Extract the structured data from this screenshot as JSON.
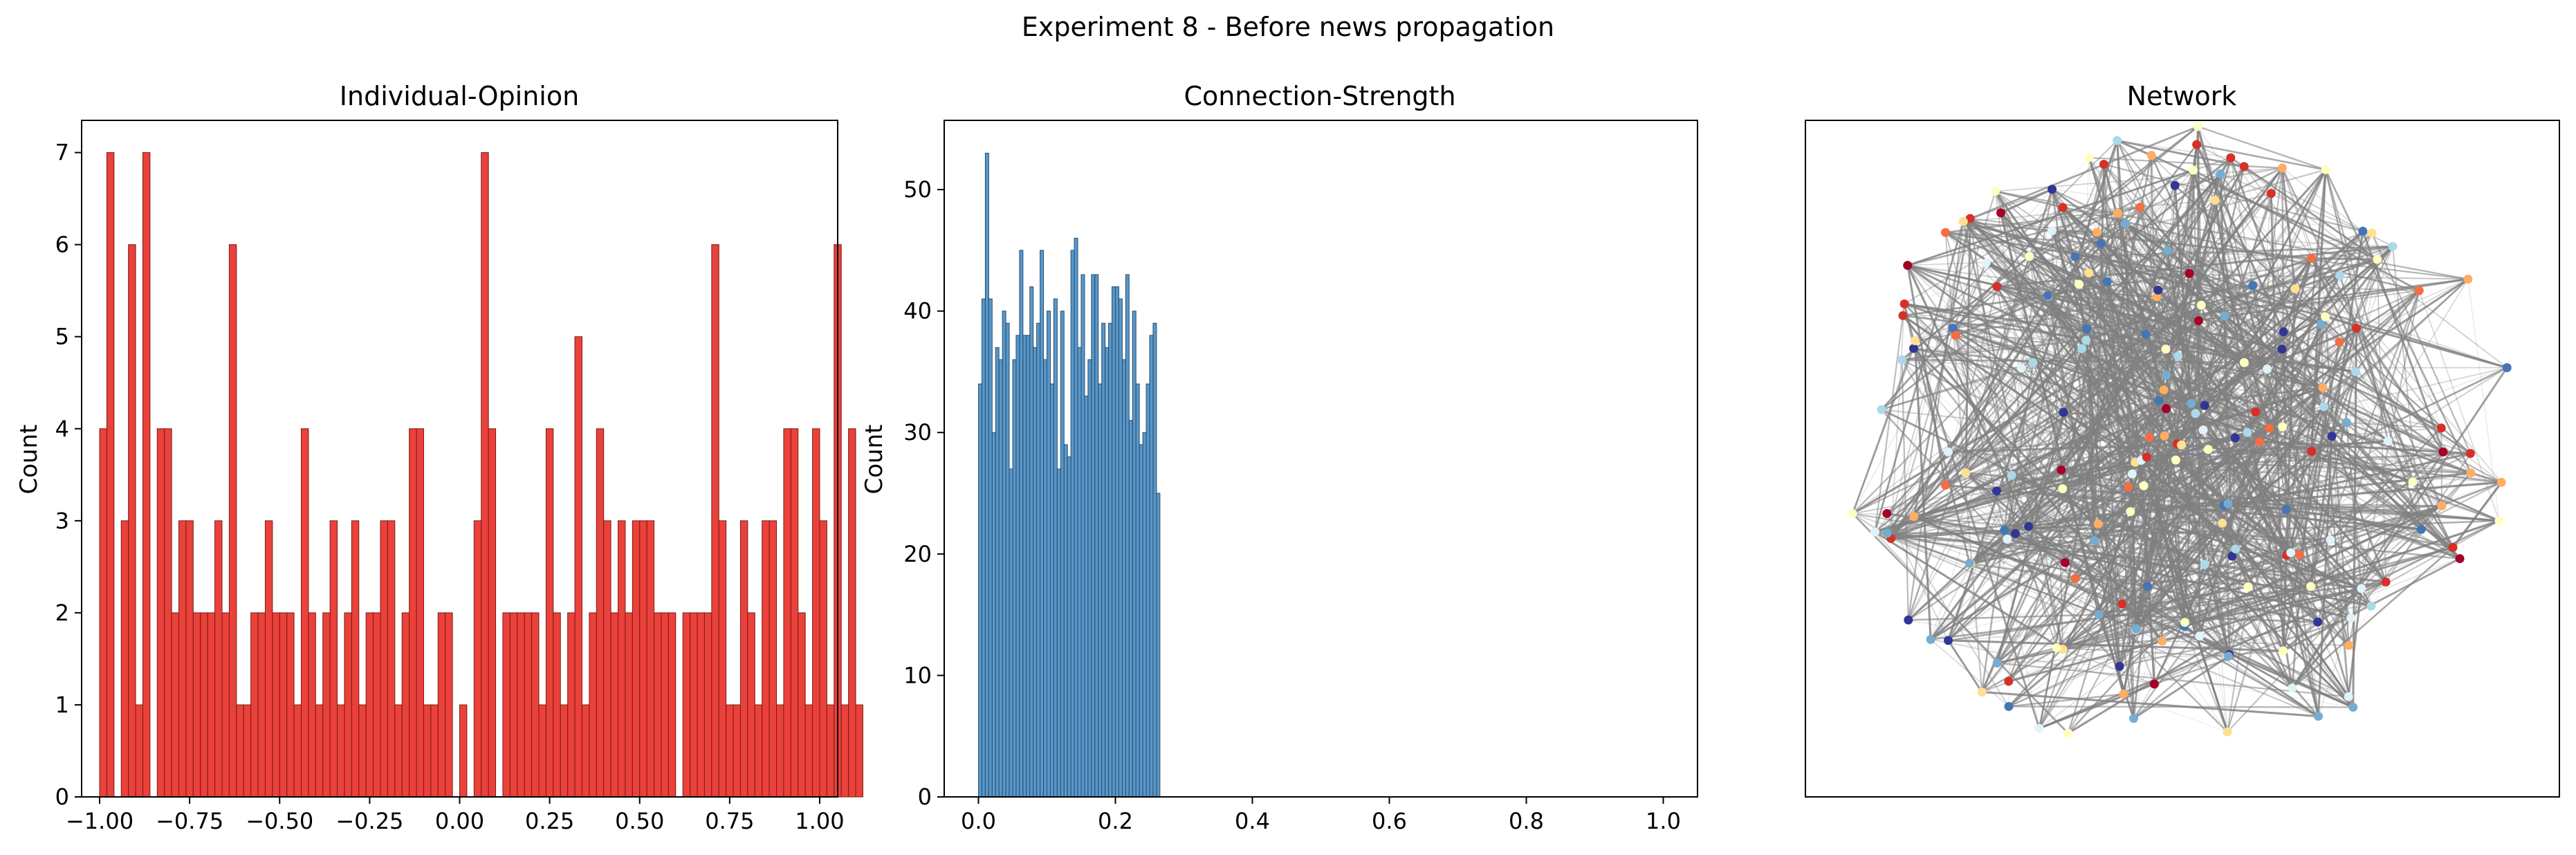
{
  "figure_title": "Experiment 8 - Before news propagation",
  "chart_data": [
    {
      "type": "bar",
      "title": "Individual-Opinion",
      "xlabel": "",
      "ylabel": "Count",
      "xlim": [
        -1.05,
        1.05
      ],
      "ylim": [
        0,
        7.35
      ],
      "bin_start": -1.0,
      "bin_width": 0.02,
      "values": [
        4,
        7,
        0,
        3,
        6,
        1,
        7,
        0,
        4,
        4,
        2,
        3,
        3,
        2,
        2,
        2,
        3,
        2,
        6,
        1,
        1,
        2,
        2,
        3,
        2,
        2,
        2,
        1,
        4,
        2,
        1,
        2,
        3,
        1,
        2,
        3,
        1,
        2,
        2,
        3,
        3,
        1,
        2,
        4,
        4,
        1,
        1,
        2,
        2,
        0,
        1,
        0,
        3,
        7,
        4,
        0,
        2,
        2,
        2,
        2,
        2,
        1,
        4,
        2,
        1,
        2,
        5,
        1,
        2,
        4,
        3,
        2,
        3,
        2,
        3,
        3,
        3,
        2,
        2,
        2,
        0,
        2,
        2,
        2,
        2,
        6,
        3,
        1,
        1,
        3,
        2,
        1,
        3,
        3,
        1,
        4,
        4,
        2,
        1,
        4,
        3,
        1,
        6,
        1,
        4,
        1
      ],
      "color": "#e8312a",
      "edge_color": "#7a1a16",
      "xticks": [
        "−1.00",
        "−0.75",
        "−0.50",
        "−0.25",
        "0.00",
        "0.25",
        "0.50",
        "0.75",
        "1.00"
      ],
      "xtick_values": [
        -1.0,
        -0.75,
        -0.5,
        -0.25,
        0.0,
        0.25,
        0.5,
        0.75,
        1.0
      ],
      "yticks": [
        "0",
        "1",
        "2",
        "3",
        "4",
        "5",
        "6",
        "7"
      ],
      "ytick_values": [
        0,
        1,
        2,
        3,
        4,
        5,
        6,
        7
      ]
    },
    {
      "type": "bar",
      "title": "Connection-Strength",
      "xlabel": "",
      "ylabel": "Count",
      "xlim": [
        -0.05,
        1.05
      ],
      "ylim": [
        0,
        55.7
      ],
      "bin_start": 0.0,
      "bin_width": 0.005,
      "values": [
        34,
        41,
        53,
        41,
        30,
        37,
        36,
        40,
        39,
        27,
        36,
        38,
        45,
        38,
        38,
        42,
        37,
        39,
        45,
        36,
        40,
        34,
        41,
        27,
        40,
        29,
        28,
        45,
        46,
        37,
        43,
        33,
        36,
        43,
        43,
        34,
        39,
        37,
        39,
        42,
        42,
        41,
        36,
        43,
        31,
        40,
        34,
        29,
        30,
        34,
        38,
        39,
        25
      ],
      "color": "#4a8ec4",
      "edge_color": "#284e6e",
      "xticks": [
        "0.0",
        "0.2",
        "0.4",
        "0.6",
        "0.8",
        "1.0"
      ],
      "xtick_values": [
        0.0,
        0.2,
        0.4,
        0.6,
        0.8,
        1.0
      ],
      "yticks": [
        "0",
        "10",
        "20",
        "30",
        "40",
        "50"
      ],
      "ytick_values": [
        0,
        10,
        20,
        30,
        40,
        50
      ]
    },
    {
      "type": "network",
      "title": "Network",
      "node_colormap": [
        "#a50026",
        "#d73027",
        "#f46d43",
        "#fdae61",
        "#fee090",
        "#ffffbf",
        "#e0f3f8",
        "#abd9e9",
        "#74add1",
        "#4575b4",
        "#313695"
      ],
      "edge_color": "#808080",
      "node_count": 200
    }
  ]
}
